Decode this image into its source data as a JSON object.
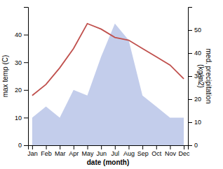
{
  "chart_data": {
    "type": "line",
    "x_label": "date (month)",
    "y_label": "max temp (C)",
    "y2_label": "med. precipitation\n(kg/m2)",
    "categories": [
      "Jan",
      "Feb",
      "Mar",
      "Apr",
      "May",
      "Jun",
      "Jul",
      "Aug",
      "Sep",
      "Oct",
      "Nov",
      "Dec"
    ],
    "series": [
      {
        "type": "area",
        "color": "#b8c4e8",
        "values": [
          10,
          14,
          10,
          20,
          18,
          32,
          44,
          38,
          18,
          14,
          10,
          10
        ]
      },
      {
        "type": "line",
        "color": "#c0504d",
        "values": [
          18,
          22,
          28,
          35,
          44,
          42,
          39,
          38,
          35,
          32,
          29,
          24
        ]
      }
    ],
    "ylim": [
      0,
      50
    ],
    "yticks": [
      0,
      10,
      20,
      30,
      40
    ],
    "y2lim": [
      0,
      60
    ],
    "y2ticks": [
      0,
      10,
      20,
      30,
      40,
      50
    ]
  }
}
